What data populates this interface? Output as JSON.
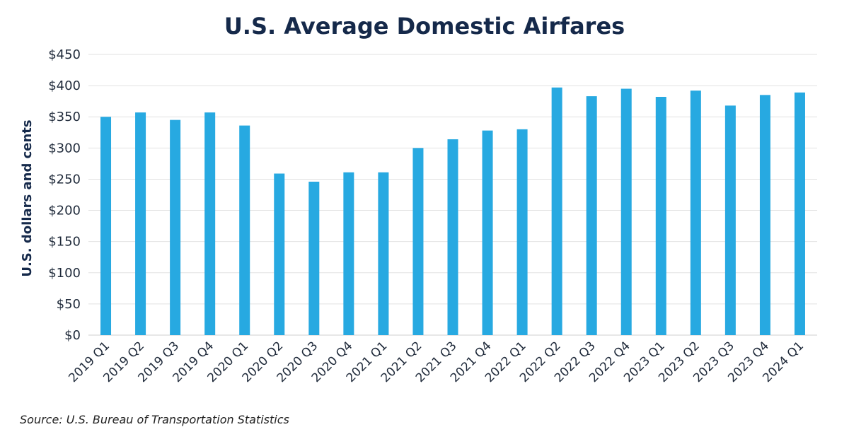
{
  "chart_data": {
    "type": "bar",
    "title": "U.S. Average Domestic Airfares",
    "ylabel": "U.S. dollars and cents",
    "xlabel": "",
    "ylim": [
      0,
      450
    ],
    "yticks": [
      "$0",
      "$50",
      "$100",
      "$150",
      "$200",
      "$250",
      "$300",
      "$350",
      "$400",
      "$450"
    ],
    "grid": true,
    "bar_color": "#27a9e1",
    "categories": [
      "2019 Q1",
      "2019 Q2",
      "2019 Q3",
      "2019 Q4",
      "2020 Q1",
      "2020 Q2",
      "2020 Q3",
      "2020 Q4",
      "2021 Q1",
      "2021 Q2",
      "2021 Q3",
      "2021 Q4",
      "2022 Q1",
      "2022 Q2",
      "2022 Q3",
      "2022 Q4",
      "2023 Q1",
      "2023 Q2",
      "2023 Q3",
      "2023 Q4",
      "2024 Q1"
    ],
    "values": [
      350,
      357,
      345,
      357,
      336,
      259,
      246,
      261,
      261,
      300,
      314,
      328,
      330,
      397,
      383,
      395,
      382,
      392,
      368,
      385,
      389
    ]
  },
  "source": "Source: U.S. Bureau of Transportation Statistics"
}
